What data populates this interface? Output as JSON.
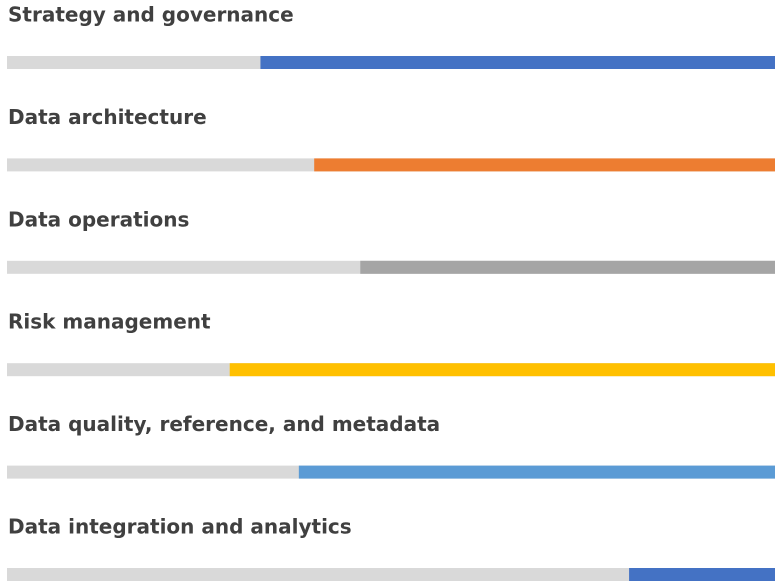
{
  "chart_data": {
    "type": "progress",
    "categories": [
      "Strategy and governance",
      "Data architecture",
      "Data operations",
      "Risk management",
      "Data quality, reference, and metadata",
      "Data integration and analytics"
    ],
    "values": [
      67,
      60,
      54,
      71,
      62,
      19
    ],
    "colors": [
      "#4472c4",
      "#ed7d31",
      "#a5a5a5",
      "#ffc000",
      "#5b9bd5",
      "#4472c4"
    ],
    "track_color": "#d9d9d9",
    "xlim": [
      0,
      100
    ]
  }
}
